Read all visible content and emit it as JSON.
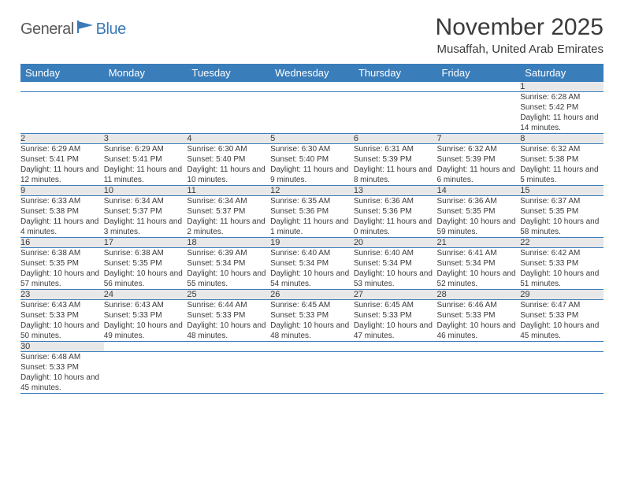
{
  "logo": {
    "text1": "General",
    "text2": "Blue"
  },
  "title": "November 2025",
  "subtitle": "Musaffah, United Arab Emirates",
  "colors": {
    "header_bg": "#3a7dbb",
    "header_text": "#ffffff",
    "daynum_bg": "#e8e8e8",
    "border": "#3a7dbb",
    "text": "#3a3a3a",
    "logo_gray": "#5a5a5a",
    "logo_blue": "#3a7ab8"
  },
  "fonts": {
    "title": 30,
    "subtitle": 15,
    "dayhead": 13,
    "daynum": 11,
    "body": 10
  },
  "dayHeaders": [
    "Sunday",
    "Monday",
    "Tuesday",
    "Wednesday",
    "Thursday",
    "Friday",
    "Saturday"
  ],
  "weeks": [
    [
      null,
      null,
      null,
      null,
      null,
      null,
      {
        "n": "1",
        "sunrise": "6:28 AM",
        "sunset": "5:42 PM",
        "daylight": "11 hours and 14 minutes."
      }
    ],
    [
      {
        "n": "2",
        "sunrise": "6:29 AM",
        "sunset": "5:41 PM",
        "daylight": "11 hours and 12 minutes."
      },
      {
        "n": "3",
        "sunrise": "6:29 AM",
        "sunset": "5:41 PM",
        "daylight": "11 hours and 11 minutes."
      },
      {
        "n": "4",
        "sunrise": "6:30 AM",
        "sunset": "5:40 PM",
        "daylight": "11 hours and 10 minutes."
      },
      {
        "n": "5",
        "sunrise": "6:30 AM",
        "sunset": "5:40 PM",
        "daylight": "11 hours and 9 minutes."
      },
      {
        "n": "6",
        "sunrise": "6:31 AM",
        "sunset": "5:39 PM",
        "daylight": "11 hours and 8 minutes."
      },
      {
        "n": "7",
        "sunrise": "6:32 AM",
        "sunset": "5:39 PM",
        "daylight": "11 hours and 6 minutes."
      },
      {
        "n": "8",
        "sunrise": "6:32 AM",
        "sunset": "5:38 PM",
        "daylight": "11 hours and 5 minutes."
      }
    ],
    [
      {
        "n": "9",
        "sunrise": "6:33 AM",
        "sunset": "5:38 PM",
        "daylight": "11 hours and 4 minutes."
      },
      {
        "n": "10",
        "sunrise": "6:34 AM",
        "sunset": "5:37 PM",
        "daylight": "11 hours and 3 minutes."
      },
      {
        "n": "11",
        "sunrise": "6:34 AM",
        "sunset": "5:37 PM",
        "daylight": "11 hours and 2 minutes."
      },
      {
        "n": "12",
        "sunrise": "6:35 AM",
        "sunset": "5:36 PM",
        "daylight": "11 hours and 1 minute."
      },
      {
        "n": "13",
        "sunrise": "6:36 AM",
        "sunset": "5:36 PM",
        "daylight": "11 hours and 0 minutes."
      },
      {
        "n": "14",
        "sunrise": "6:36 AM",
        "sunset": "5:35 PM",
        "daylight": "10 hours and 59 minutes."
      },
      {
        "n": "15",
        "sunrise": "6:37 AM",
        "sunset": "5:35 PM",
        "daylight": "10 hours and 58 minutes."
      }
    ],
    [
      {
        "n": "16",
        "sunrise": "6:38 AM",
        "sunset": "5:35 PM",
        "daylight": "10 hours and 57 minutes."
      },
      {
        "n": "17",
        "sunrise": "6:38 AM",
        "sunset": "5:35 PM",
        "daylight": "10 hours and 56 minutes."
      },
      {
        "n": "18",
        "sunrise": "6:39 AM",
        "sunset": "5:34 PM",
        "daylight": "10 hours and 55 minutes."
      },
      {
        "n": "19",
        "sunrise": "6:40 AM",
        "sunset": "5:34 PM",
        "daylight": "10 hours and 54 minutes."
      },
      {
        "n": "20",
        "sunrise": "6:40 AM",
        "sunset": "5:34 PM",
        "daylight": "10 hours and 53 minutes."
      },
      {
        "n": "21",
        "sunrise": "6:41 AM",
        "sunset": "5:34 PM",
        "daylight": "10 hours and 52 minutes."
      },
      {
        "n": "22",
        "sunrise": "6:42 AM",
        "sunset": "5:33 PM",
        "daylight": "10 hours and 51 minutes."
      }
    ],
    [
      {
        "n": "23",
        "sunrise": "6:43 AM",
        "sunset": "5:33 PM",
        "daylight": "10 hours and 50 minutes."
      },
      {
        "n": "24",
        "sunrise": "6:43 AM",
        "sunset": "5:33 PM",
        "daylight": "10 hours and 49 minutes."
      },
      {
        "n": "25",
        "sunrise": "6:44 AM",
        "sunset": "5:33 PM",
        "daylight": "10 hours and 48 minutes."
      },
      {
        "n": "26",
        "sunrise": "6:45 AM",
        "sunset": "5:33 PM",
        "daylight": "10 hours and 48 minutes."
      },
      {
        "n": "27",
        "sunrise": "6:45 AM",
        "sunset": "5:33 PM",
        "daylight": "10 hours and 47 minutes."
      },
      {
        "n": "28",
        "sunrise": "6:46 AM",
        "sunset": "5:33 PM",
        "daylight": "10 hours and 46 minutes."
      },
      {
        "n": "29",
        "sunrise": "6:47 AM",
        "sunset": "5:33 PM",
        "daylight": "10 hours and 45 minutes."
      }
    ],
    [
      {
        "n": "30",
        "sunrise": "6:48 AM",
        "sunset": "5:33 PM",
        "daylight": "10 hours and 45 minutes."
      },
      null,
      null,
      null,
      null,
      null,
      null
    ]
  ],
  "labels": {
    "sunrise": "Sunrise: ",
    "sunset": "Sunset: ",
    "daylight": "Daylight: "
  }
}
